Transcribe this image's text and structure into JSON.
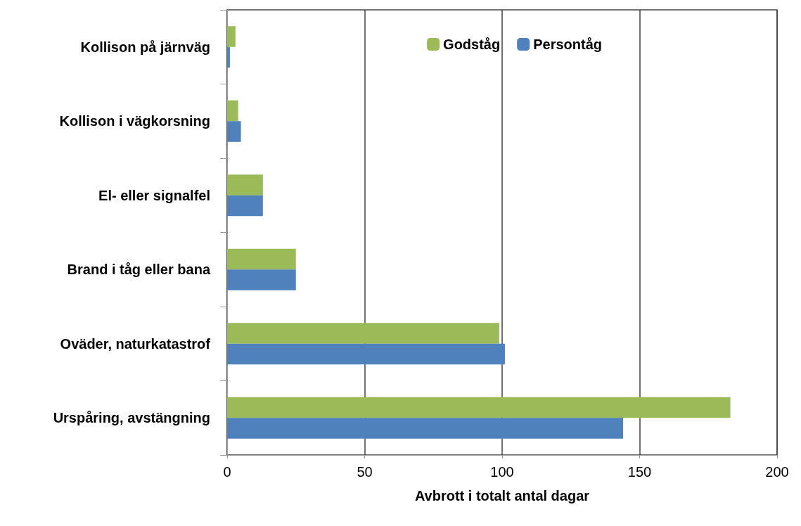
{
  "chart_data": {
    "type": "bar",
    "orientation": "horizontal",
    "xlabel": "Avbrott i totalt antal dagar",
    "categories": [
      "Kollison på järnväg",
      "Kollison i vägkorsning",
      "El- eller signalfel",
      "Brand i tåg eller bana",
      "Oväder, naturkatastrof",
      "Urspåring, avstängning"
    ],
    "series": [
      {
        "name": "Godståg",
        "color": "#9bbb59",
        "values": [
          3,
          4,
          13,
          25,
          99,
          183
        ]
      },
      {
        "name": "Persontåg",
        "color": "#4f81bd",
        "values": [
          1,
          5,
          13,
          25,
          101,
          144
        ]
      }
    ],
    "xlim": [
      0,
      200
    ],
    "xticks": [
      0,
      50,
      100,
      150,
      200
    ],
    "grid": "x",
    "legend": "top right"
  }
}
